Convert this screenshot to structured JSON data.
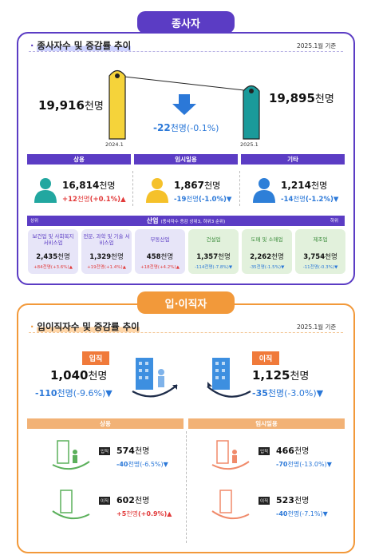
{
  "employed": {
    "tab": "종사자",
    "title": "종사자수 및 증감률 추이",
    "basis": "2025.1월 기준",
    "prev": {
      "label": "2024.1",
      "value": "19,916",
      "unit": "천명"
    },
    "curr": {
      "label": "2025.1",
      "value": "19,895",
      "unit": "천명"
    },
    "change": {
      "value": "-22",
      "unit": "천명",
      "pct": "(-0.1%)"
    },
    "categories": [
      {
        "name": "상용",
        "value": "16,814",
        "unit": "천명",
        "delta": "+12",
        "delta_unit": "천명",
        "pct": "(+0.1%)",
        "dir": "up"
      },
      {
        "name": "임시일용",
        "value": "1,867",
        "unit": "천명",
        "delta": "-19",
        "delta_unit": "천명",
        "pct": "(-1.0%)",
        "dir": "down"
      },
      {
        "name": "기타",
        "value": "1,214",
        "unit": "천명",
        "delta": "-14",
        "delta_unit": "천명",
        "pct": "(-1.2%)",
        "dir": "down"
      }
    ],
    "industry": {
      "label": "산업",
      "note": "(종사자수 증감 상위3, 하위3 순위)",
      "left": "상위",
      "right": "하위",
      "items": [
        {
          "name": "보건업 및 사회복지 서비스업",
          "value": "2,435",
          "unit": "천명",
          "delta": "+84천명(+3.6%)",
          "dir": "up"
        },
        {
          "name": "전문, 과학 및 기술 서비스업",
          "value": "1,329",
          "unit": "천명",
          "delta": "+19천명(+1.4%)",
          "dir": "up"
        },
        {
          "name": "부동산업",
          "value": "458",
          "unit": "천명",
          "delta": "+18천명(+4.2%)",
          "dir": "up"
        },
        {
          "name": "건설업",
          "value": "1,357",
          "unit": "천명",
          "delta": "-114천명(-7.8%)",
          "dir": "down"
        },
        {
          "name": "도매 및 소매업",
          "value": "2,262",
          "unit": "천명",
          "delta": "-35천명(-1.5%)",
          "dir": "down"
        },
        {
          "name": "제조업",
          "value": "3,754",
          "unit": "천명",
          "delta": "-11천명(-0.3%)",
          "dir": "down"
        }
      ]
    }
  },
  "movement": {
    "tab": "입·이직자",
    "title": "입이직자수 및 증감률 추이",
    "basis": "2025.1월 기준",
    "hire": {
      "badge": "입직",
      "value": "1,040",
      "unit": "천명",
      "delta": "-110",
      "delta_unit": "천명",
      "pct": "(-9.6%)"
    },
    "sep": {
      "badge": "이직",
      "value": "1,125",
      "unit": "천명",
      "delta": "-35",
      "delta_unit": "천명",
      "pct": "(-3.0%)"
    },
    "regular": {
      "name": "상용",
      "hire": {
        "badge": "입직",
        "value": "574",
        "unit": "천명",
        "delta": "-40",
        "delta_unit": "천명",
        "pct": "(-6.5%)"
      },
      "sep": {
        "badge": "이직",
        "value": "602",
        "unit": "천명",
        "delta": "+5",
        "delta_unit": "천명",
        "pct": "(+0.9%)"
      }
    },
    "temp": {
      "name": "임시일용",
      "hire": {
        "badge": "입직",
        "value": "466",
        "unit": "천명",
        "delta": "-70",
        "delta_unit": "천명",
        "pct": "(-13.0%)"
      },
      "sep": {
        "badge": "이직",
        "value": "523",
        "unit": "천명",
        "delta": "-40",
        "delta_unit": "천명",
        "pct": "(-7.1%)"
      }
    }
  },
  "colors": {
    "purple": "#5b3cc4",
    "orange": "#f2993a",
    "up": "#e23b3b",
    "down": "#2b78d8",
    "yellow_bar": "#f5d33a",
    "teal_bar": "#1a9a9a"
  }
}
